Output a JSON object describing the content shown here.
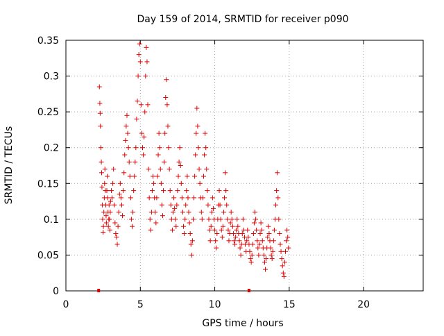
{
  "colors": {
    "series": "#e00000",
    "grid": "#a0a0a0",
    "axis": "#000000",
    "background": "#ffffff"
  },
  "chart_data": {
    "type": "scatter",
    "title": "Day 159 of 2014, SRMTID for receiver p090",
    "xlabel": "GPS time / hours",
    "ylabel": "SRMTID / TECUs",
    "xlim": [
      0,
      24
    ],
    "ylim": [
      0,
      0.35
    ],
    "xticks": [
      0,
      5,
      10,
      15,
      20
    ],
    "yticks": [
      0,
      0.05,
      0.1,
      0.15,
      0.2,
      0.25,
      0.3,
      0.35
    ],
    "xtick_labels": [
      "0",
      "5",
      "10",
      "15",
      "20"
    ],
    "ytick_labels": [
      "0",
      "0.05",
      "0.1",
      "0.15",
      "0.2",
      "0.25",
      "0.3",
      "0.35"
    ],
    "grid": true,
    "marker": "plus",
    "axis_markers_x": [
      2.2,
      12.3
    ],
    "series": [
      {
        "name": "SRMTID",
        "points": [
          [
            2.25,
            0.285
          ],
          [
            2.28,
            0.262
          ],
          [
            2.3,
            0.248
          ],
          [
            2.32,
            0.23
          ],
          [
            2.35,
            0.2
          ],
          [
            2.38,
            0.18
          ],
          [
            2.4,
            0.165
          ],
          [
            2.42,
            0.145
          ],
          [
            2.45,
            0.12
          ],
          [
            2.47,
            0.1
          ],
          [
            2.5,
            0.082
          ],
          [
            2.52,
            0.09
          ],
          [
            2.55,
            0.11
          ],
          [
            2.58,
            0.13
          ],
          [
            2.6,
            0.15
          ],
          [
            2.62,
            0.17
          ],
          [
            2.65,
            0.14
          ],
          [
            2.68,
            0.12
          ],
          [
            2.7,
            0.105
          ],
          [
            2.72,
            0.095
          ],
          [
            2.75,
            0.14
          ],
          [
            2.78,
            0.16
          ],
          [
            2.8,
            0.13
          ],
          [
            2.83,
            0.11
          ],
          [
            2.85,
            0.09
          ],
          [
            2.88,
            0.1
          ],
          [
            2.9,
            0.12
          ],
          [
            2.93,
            0.1
          ],
          [
            2.95,
            0.085
          ],
          [
            2.98,
            0.11
          ],
          [
            3.0,
            0.125
          ],
          [
            3.05,
            0.14
          ],
          [
            3.1,
            0.13
          ],
          [
            3.15,
            0.15
          ],
          [
            3.2,
            0.17
          ],
          [
            3.25,
            0.12
          ],
          [
            3.3,
            0.095
          ],
          [
            3.35,
            0.08
          ],
          [
            3.4,
            0.075
          ],
          [
            3.45,
            0.065
          ],
          [
            3.5,
            0.09
          ],
          [
            3.55,
            0.11
          ],
          [
            3.6,
            0.135
          ],
          [
            3.65,
            0.15
          ],
          [
            3.7,
            0.13
          ],
          [
            3.75,
            0.12
          ],
          [
            3.8,
            0.105
          ],
          [
            3.85,
            0.14
          ],
          [
            3.9,
            0.165
          ],
          [
            3.95,
            0.19
          ],
          [
            4.0,
            0.21
          ],
          [
            4.05,
            0.23
          ],
          [
            4.1,
            0.245
          ],
          [
            4.15,
            0.22
          ],
          [
            4.2,
            0.2
          ],
          [
            4.25,
            0.18
          ],
          [
            4.3,
            0.16
          ],
          [
            4.35,
            0.13
          ],
          [
            4.4,
            0.1
          ],
          [
            4.45,
            0.09
          ],
          [
            4.5,
            0.11
          ],
          [
            4.55,
            0.14
          ],
          [
            4.6,
            0.16
          ],
          [
            4.65,
            0.18
          ],
          [
            4.7,
            0.2
          ],
          [
            4.75,
            0.24
          ],
          [
            4.8,
            0.265
          ],
          [
            4.85,
            0.3
          ],
          [
            4.9,
            0.33
          ],
          [
            4.95,
            0.345
          ],
          [
            5.0,
            0.32
          ],
          [
            5.05,
            0.26
          ],
          [
            5.1,
            0.22
          ],
          [
            5.15,
            0.2
          ],
          [
            5.2,
            0.19
          ],
          [
            5.25,
            0.215
          ],
          [
            5.3,
            0.25
          ],
          [
            5.35,
            0.3
          ],
          [
            5.4,
            0.34
          ],
          [
            5.45,
            0.32
          ],
          [
            5.5,
            0.26
          ],
          [
            5.55,
            0.17
          ],
          [
            5.6,
            0.13
          ],
          [
            5.65,
            0.1
          ],
          [
            5.7,
            0.085
          ],
          [
            5.75,
            0.11
          ],
          [
            5.8,
            0.14
          ],
          [
            5.85,
            0.16
          ],
          [
            5.9,
            0.15
          ],
          [
            5.95,
            0.13
          ],
          [
            6.0,
            0.11
          ],
          [
            6.05,
            0.095
          ],
          [
            6.1,
            0.13
          ],
          [
            6.15,
            0.16
          ],
          [
            6.2,
            0.19
          ],
          [
            6.25,
            0.22
          ],
          [
            6.3,
            0.2
          ],
          [
            6.35,
            0.17
          ],
          [
            6.4,
            0.15
          ],
          [
            6.45,
            0.12
          ],
          [
            6.5,
            0.105
          ],
          [
            6.55,
            0.14
          ],
          [
            6.6,
            0.18
          ],
          [
            6.65,
            0.22
          ],
          [
            6.7,
            0.27
          ],
          [
            6.75,
            0.295
          ],
          [
            6.8,
            0.26
          ],
          [
            6.85,
            0.23
          ],
          [
            6.9,
            0.2
          ],
          [
            6.95,
            0.17
          ],
          [
            7.0,
            0.14
          ],
          [
            7.05,
            0.12
          ],
          [
            7.1,
            0.1
          ],
          [
            7.15,
            0.085
          ],
          [
            7.2,
            0.11
          ],
          [
            7.25,
            0.13
          ],
          [
            7.3,
            0.115
          ],
          [
            7.35,
            0.1
          ],
          [
            7.4,
            0.09
          ],
          [
            7.45,
            0.12
          ],
          [
            7.5,
            0.14
          ],
          [
            7.55,
            0.16
          ],
          [
            7.6,
            0.18
          ],
          [
            7.65,
            0.2
          ],
          [
            7.7,
            0.175
          ],
          [
            7.75,
            0.15
          ],
          [
            7.8,
            0.13
          ],
          [
            7.85,
            0.11
          ],
          [
            7.9,
            0.09
          ],
          [
            7.95,
            0.08
          ],
          [
            8.0,
            0.1
          ],
          [
            8.05,
            0.12
          ],
          [
            8.1,
            0.14
          ],
          [
            8.15,
            0.16
          ],
          [
            8.2,
            0.13
          ],
          [
            8.25,
            0.11
          ],
          [
            8.3,
            0.095
          ],
          [
            8.35,
            0.08
          ],
          [
            8.4,
            0.065
          ],
          [
            8.45,
            0.05
          ],
          [
            8.5,
            0.07
          ],
          [
            8.55,
            0.1
          ],
          [
            8.6,
            0.13
          ],
          [
            8.65,
            0.16
          ],
          [
            8.7,
            0.19
          ],
          [
            8.75,
            0.22
          ],
          [
            8.8,
            0.255
          ],
          [
            8.85,
            0.23
          ],
          [
            8.9,
            0.2
          ],
          [
            8.95,
            0.17
          ],
          [
            9.0,
            0.15
          ],
          [
            9.05,
            0.13
          ],
          [
            9.1,
            0.11
          ],
          [
            9.15,
            0.1
          ],
          [
            9.2,
            0.13
          ],
          [
            9.25,
            0.16
          ],
          [
            9.3,
            0.19
          ],
          [
            9.35,
            0.22
          ],
          [
            9.4,
            0.2
          ],
          [
            9.45,
            0.17
          ],
          [
            9.5,
            0.14
          ],
          [
            9.55,
            0.12
          ],
          [
            9.6,
            0.1
          ],
          [
            9.65,
            0.085
          ],
          [
            9.7,
            0.07
          ],
          [
            9.75,
            0.09
          ],
          [
            9.8,
            0.11
          ],
          [
            9.85,
            0.13
          ],
          [
            9.9,
            0.115
          ],
          [
            9.95,
            0.1
          ],
          [
            10.0,
            0.085
          ],
          [
            10.05,
            0.07
          ],
          [
            10.1,
            0.06
          ],
          [
            10.15,
            0.08
          ],
          [
            10.2,
            0.1
          ],
          [
            10.25,
            0.12
          ],
          [
            10.3,
            0.14
          ],
          [
            10.35,
            0.12
          ],
          [
            10.4,
            0.1
          ],
          [
            10.45,
            0.085
          ],
          [
            10.5,
            0.075
          ],
          [
            10.55,
            0.09
          ],
          [
            10.6,
            0.11
          ],
          [
            10.65,
            0.13
          ],
          [
            10.7,
            0.165
          ],
          [
            10.75,
            0.14
          ],
          [
            10.8,
            0.12
          ],
          [
            10.85,
            0.1
          ],
          [
            10.9,
            0.085
          ],
          [
            10.95,
            0.07
          ],
          [
            11.0,
            0.08
          ],
          [
            11.05,
            0.095
          ],
          [
            11.1,
            0.11
          ],
          [
            11.15,
            0.1
          ],
          [
            11.2,
            0.09
          ],
          [
            11.25,
            0.08
          ],
          [
            11.3,
            0.07
          ],
          [
            11.35,
            0.065
          ],
          [
            11.4,
            0.075
          ],
          [
            11.45,
            0.085
          ],
          [
            11.5,
            0.1
          ],
          [
            11.55,
            0.09
          ],
          [
            11.6,
            0.08
          ],
          [
            11.65,
            0.07
          ],
          [
            11.7,
            0.06
          ],
          [
            11.75,
            0.05
          ],
          [
            11.8,
            0.065
          ],
          [
            11.85,
            0.08
          ],
          [
            11.9,
            0.1
          ],
          [
            11.95,
            0.085
          ],
          [
            12.0,
            0.075
          ],
          [
            12.05,
            0.065
          ],
          [
            12.1,
            0.055
          ],
          [
            12.15,
            0.07
          ],
          [
            12.2,
            0.085
          ],
          [
            12.25,
            0.075
          ],
          [
            12.3,
            0.065
          ],
          [
            12.35,
            0.055
          ],
          [
            12.4,
            0.045
          ],
          [
            12.45,
            0.04
          ],
          [
            12.5,
            0.05
          ],
          [
            12.55,
            0.065
          ],
          [
            12.6,
            0.08
          ],
          [
            12.65,
            0.095
          ],
          [
            12.7,
            0.11
          ],
          [
            12.75,
            0.1
          ],
          [
            12.8,
            0.085
          ],
          [
            12.85,
            0.07
          ],
          [
            12.9,
            0.06
          ],
          [
            12.95,
            0.05
          ],
          [
            13.0,
            0.065
          ],
          [
            13.05,
            0.08
          ],
          [
            13.1,
            0.095
          ],
          [
            13.15,
            0.085
          ],
          [
            13.2,
            0.07
          ],
          [
            13.25,
            0.06
          ],
          [
            13.3,
            0.05
          ],
          [
            13.35,
            0.04
          ],
          [
            13.4,
            0.03
          ],
          [
            13.45,
            0.045
          ],
          [
            13.5,
            0.06
          ],
          [
            13.55,
            0.075
          ],
          [
            13.6,
            0.09
          ],
          [
            13.65,
            0.08
          ],
          [
            13.7,
            0.07
          ],
          [
            13.75,
            0.06
          ],
          [
            13.8,
            0.05
          ],
          [
            13.85,
            0.045
          ],
          [
            13.9,
            0.055
          ],
          [
            13.95,
            0.07
          ],
          [
            14.0,
            0.085
          ],
          [
            14.05,
            0.1
          ],
          [
            14.1,
            0.12
          ],
          [
            14.15,
            0.14
          ],
          [
            14.2,
            0.165
          ],
          [
            14.25,
            0.13
          ],
          [
            14.3,
            0.1
          ],
          [
            14.35,
            0.08
          ],
          [
            14.4,
            0.065
          ],
          [
            14.45,
            0.055
          ],
          [
            14.5,
            0.045
          ],
          [
            14.55,
            0.035
          ],
          [
            14.6,
            0.025
          ],
          [
            14.65,
            0.02
          ],
          [
            14.7,
            0.04
          ],
          [
            14.75,
            0.055
          ],
          [
            14.8,
            0.07
          ],
          [
            14.85,
            0.085
          ],
          [
            14.9,
            0.075
          ],
          [
            14.95,
            0.06
          ]
        ]
      }
    ]
  }
}
